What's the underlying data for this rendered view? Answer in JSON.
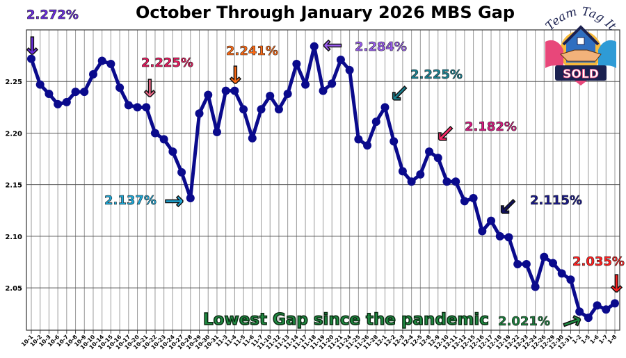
{
  "chart_data": {
    "type": "line",
    "title": "October Through January 2026 MBS Gap",
    "xlabel": "",
    "ylabel": "",
    "ylim": [
      2.009,
      2.3
    ],
    "yticks": [
      "2.05",
      "2.10",
      "2.15",
      "2.20",
      "2.25"
    ],
    "grid": true,
    "line_color": "#0a0a8c",
    "categories": [
      "10-1",
      "10-2",
      "10-3",
      "10-6",
      "10-7",
      "10-8",
      "10-9",
      "10-10",
      "10-14",
      "10-15",
      "10-16",
      "10-17",
      "10-20",
      "10-21",
      "10-22",
      "10-23",
      "10-24",
      "10-27",
      "10-28",
      "10-29",
      "10-30",
      "10-31",
      "11-3",
      "11-4",
      "11-5",
      "11-6",
      "11-7",
      "11-10",
      "11-12",
      "11-13",
      "11-14",
      "11-17",
      "11-18",
      "11-19",
      "11-20",
      "11-21",
      "11-24",
      "11-25",
      "11-26",
      "11-28",
      "12-1",
      "12-2",
      "12-3",
      "12-4",
      "12-5",
      "12-8",
      "12-9",
      "12-10",
      "12-11",
      "12-12",
      "12-15",
      "12-16",
      "12-17",
      "12-18",
      "12-19",
      "12-22",
      "12-23",
      "12-24",
      "12-26",
      "12-29",
      "12-30",
      "12-31",
      "1-2",
      "1-5",
      "1-6",
      "1-7",
      "1-8"
    ],
    "values": [
      2.272,
      2.247,
      2.238,
      2.228,
      2.23,
      2.24,
      2.24,
      2.257,
      2.27,
      2.267,
      2.244,
      2.227,
      2.225,
      2.225,
      2.2,
      2.194,
      2.182,
      2.162,
      2.137,
      2.219,
      2.237,
      2.201,
      2.241,
      2.241,
      2.223,
      2.195,
      2.223,
      2.236,
      2.223,
      2.238,
      2.267,
      2.247,
      2.284,
      2.241,
      2.248,
      2.271,
      2.261,
      2.194,
      2.188,
      2.211,
      2.225,
      2.192,
      2.163,
      2.153,
      2.16,
      2.182,
      2.176,
      2.153,
      2.153,
      2.134,
      2.137,
      2.105,
      2.115,
      2.1,
      2.099,
      2.073,
      2.073,
      2.051,
      2.08,
      2.074,
      2.064,
      2.058,
      2.027,
      2.021,
      2.033,
      2.029,
      2.035
    ],
    "annotations": [
      {
        "text": "2.272%",
        "color": "#6a2be0",
        "arrow_color": "#6a2be0"
      },
      {
        "text": "2.225%",
        "color": "#e8175d",
        "arrow_color": "#f26b8c"
      },
      {
        "text": "2.137%",
        "color": "#1ea7d6",
        "arrow_color": "#1ea7d6"
      },
      {
        "text": "2.241%",
        "color": "#ff6a13",
        "arrow_color": "#ff6a13"
      },
      {
        "text": "2.284%",
        "color": "#9a5cf0",
        "arrow_color": "#9a5cf0"
      },
      {
        "text": "2.225%",
        "color": "#1a7f8f",
        "arrow_color": "#1a7f8f"
      },
      {
        "text": "2.182%",
        "color": "#d6187f",
        "arrow_color": "#ff2a6a"
      },
      {
        "text": "2.115%",
        "color": "#1a1a8a",
        "arrow_color": "#101060"
      },
      {
        "text": "2.035%",
        "color": "#ff2020",
        "arrow_color": "#ff2020"
      },
      {
        "text": "2.021%",
        "color": "#1a7a3a",
        "arrow_color": "#1e8a40"
      }
    ],
    "callout": "Lowest Gap since the pandemic"
  },
  "logo": {
    "top_text": "Team Tag It",
    "badge_text": "SOLD"
  }
}
